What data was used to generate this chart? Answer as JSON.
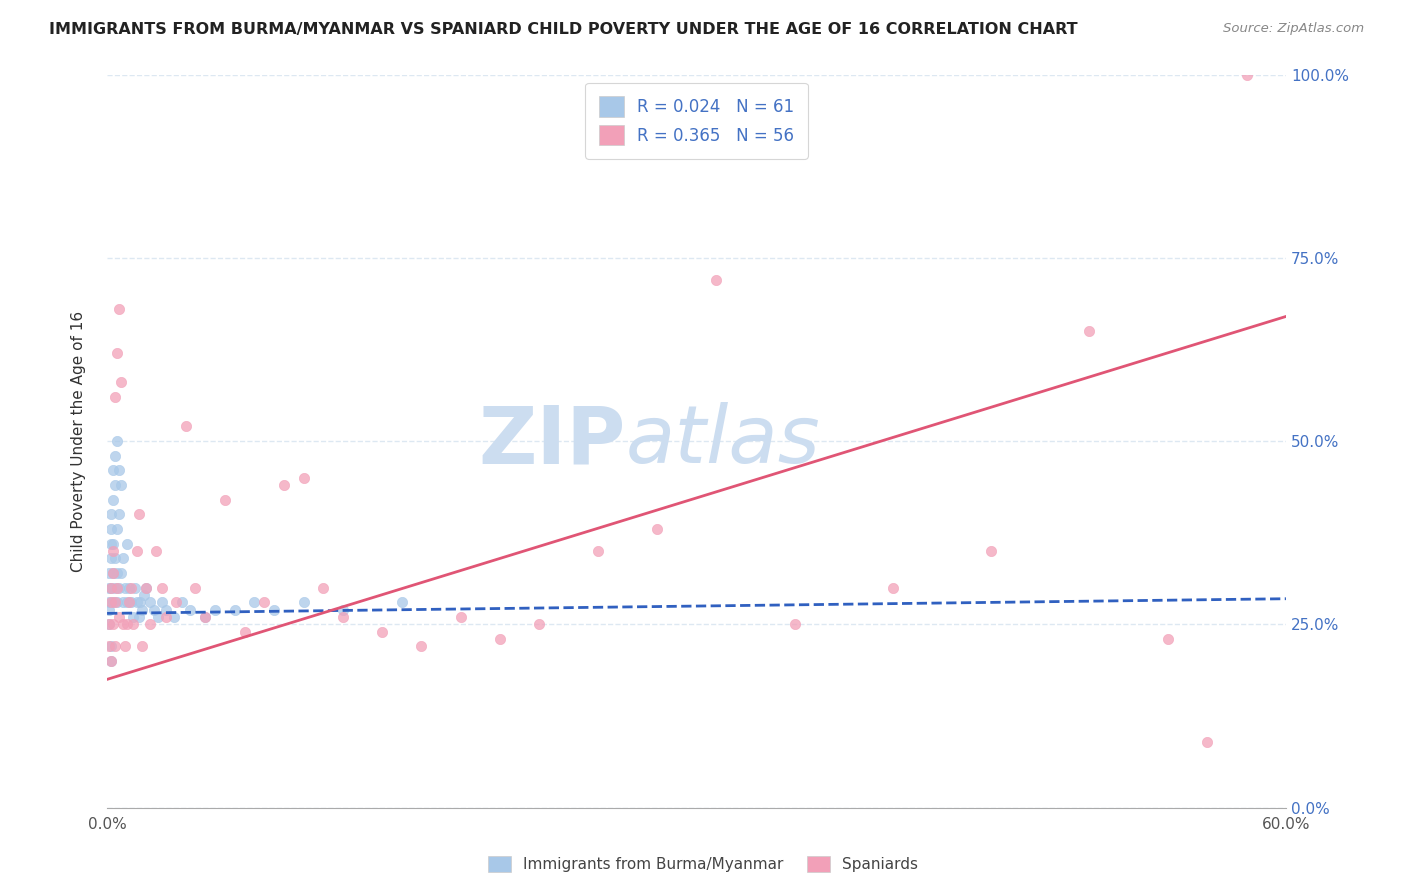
{
  "title": "IMMIGRANTS FROM BURMA/MYANMAR VS SPANIARD CHILD POVERTY UNDER THE AGE OF 16 CORRELATION CHART",
  "source": "Source: ZipAtlas.com",
  "ylabel": "Child Poverty Under the Age of 16",
  "xlim": [
    0.0,
    0.6
  ],
  "ylim": [
    0.0,
    1.0
  ],
  "blue_R": 0.024,
  "blue_N": 61,
  "pink_R": 0.365,
  "pink_N": 56,
  "blue_color": "#a8c8e8",
  "pink_color": "#f2a0b8",
  "blue_line_color": "#3060c0",
  "pink_line_color": "#e05575",
  "right_axis_color": "#4472c4",
  "legend_text_color": "#4472c4",
  "watermark_zip": "ZIP",
  "watermark_atlas": "atlas",
  "watermark_color": "#ccddf0",
  "blue_scatter_x": [
    0.001,
    0.001,
    0.001,
    0.001,
    0.001,
    0.002,
    0.002,
    0.002,
    0.002,
    0.002,
    0.002,
    0.002,
    0.003,
    0.003,
    0.003,
    0.003,
    0.003,
    0.004,
    0.004,
    0.004,
    0.004,
    0.005,
    0.005,
    0.005,
    0.005,
    0.006,
    0.006,
    0.006,
    0.007,
    0.007,
    0.008,
    0.008,
    0.009,
    0.01,
    0.01,
    0.011,
    0.012,
    0.013,
    0.014,
    0.015,
    0.016,
    0.017,
    0.018,
    0.019,
    0.02,
    0.022,
    0.024,
    0.026,
    0.028,
    0.03,
    0.034,
    0.038,
    0.042,
    0.05,
    0.055,
    0.065,
    0.075,
    0.085,
    0.1,
    0.12,
    0.15
  ],
  "blue_scatter_y": [
    0.28,
    0.3,
    0.32,
    0.27,
    0.25,
    0.22,
    0.3,
    0.34,
    0.36,
    0.38,
    0.4,
    0.2,
    0.28,
    0.32,
    0.36,
    0.42,
    0.46,
    0.3,
    0.34,
    0.44,
    0.48,
    0.28,
    0.32,
    0.38,
    0.5,
    0.3,
    0.4,
    0.46,
    0.32,
    0.44,
    0.28,
    0.34,
    0.3,
    0.28,
    0.36,
    0.3,
    0.28,
    0.26,
    0.3,
    0.28,
    0.26,
    0.28,
    0.27,
    0.29,
    0.3,
    0.28,
    0.27,
    0.26,
    0.28,
    0.27,
    0.26,
    0.28,
    0.27,
    0.26,
    0.27,
    0.27,
    0.28,
    0.27,
    0.28,
    0.27,
    0.28
  ],
  "pink_scatter_x": [
    0.001,
    0.001,
    0.002,
    0.002,
    0.002,
    0.003,
    0.003,
    0.003,
    0.004,
    0.004,
    0.004,
    0.005,
    0.005,
    0.006,
    0.006,
    0.007,
    0.008,
    0.009,
    0.01,
    0.011,
    0.012,
    0.013,
    0.015,
    0.016,
    0.018,
    0.02,
    0.022,
    0.025,
    0.028,
    0.03,
    0.035,
    0.04,
    0.045,
    0.05,
    0.06,
    0.07,
    0.08,
    0.09,
    0.1,
    0.11,
    0.12,
    0.14,
    0.16,
    0.18,
    0.2,
    0.22,
    0.25,
    0.28,
    0.31,
    0.35,
    0.4,
    0.45,
    0.5,
    0.54,
    0.56,
    0.58
  ],
  "pink_scatter_y": [
    0.25,
    0.22,
    0.3,
    0.28,
    0.2,
    0.32,
    0.35,
    0.25,
    0.22,
    0.28,
    0.56,
    0.3,
    0.62,
    0.68,
    0.26,
    0.58,
    0.25,
    0.22,
    0.25,
    0.28,
    0.3,
    0.25,
    0.35,
    0.4,
    0.22,
    0.3,
    0.25,
    0.35,
    0.3,
    0.26,
    0.28,
    0.52,
    0.3,
    0.26,
    0.42,
    0.24,
    0.28,
    0.44,
    0.45,
    0.3,
    0.26,
    0.24,
    0.22,
    0.26,
    0.23,
    0.25,
    0.35,
    0.38,
    0.72,
    0.25,
    0.3,
    0.35,
    0.65,
    0.23,
    0.09,
    1.0
  ],
  "blue_trend_x": [
    0.0,
    0.6
  ],
  "blue_trend_y": [
    0.265,
    0.285
  ],
  "pink_trend_x": [
    0.0,
    0.6
  ],
  "pink_trend_y": [
    0.175,
    0.67
  ],
  "grid_color": "#dde8f2",
  "background_color": "#ffffff",
  "x_tick_vals": [
    0.0,
    0.1,
    0.2,
    0.3,
    0.4,
    0.5,
    0.6
  ],
  "x_tick_labels": [
    "0.0%",
    "",
    "",
    "",
    "",
    "",
    "60.0%"
  ],
  "y_tick_vals": [
    0.0,
    0.25,
    0.5,
    0.75,
    1.0
  ],
  "y_tick_labels": [
    "0.0%",
    "25.0%",
    "50.0%",
    "75.0%",
    "100.0%"
  ]
}
